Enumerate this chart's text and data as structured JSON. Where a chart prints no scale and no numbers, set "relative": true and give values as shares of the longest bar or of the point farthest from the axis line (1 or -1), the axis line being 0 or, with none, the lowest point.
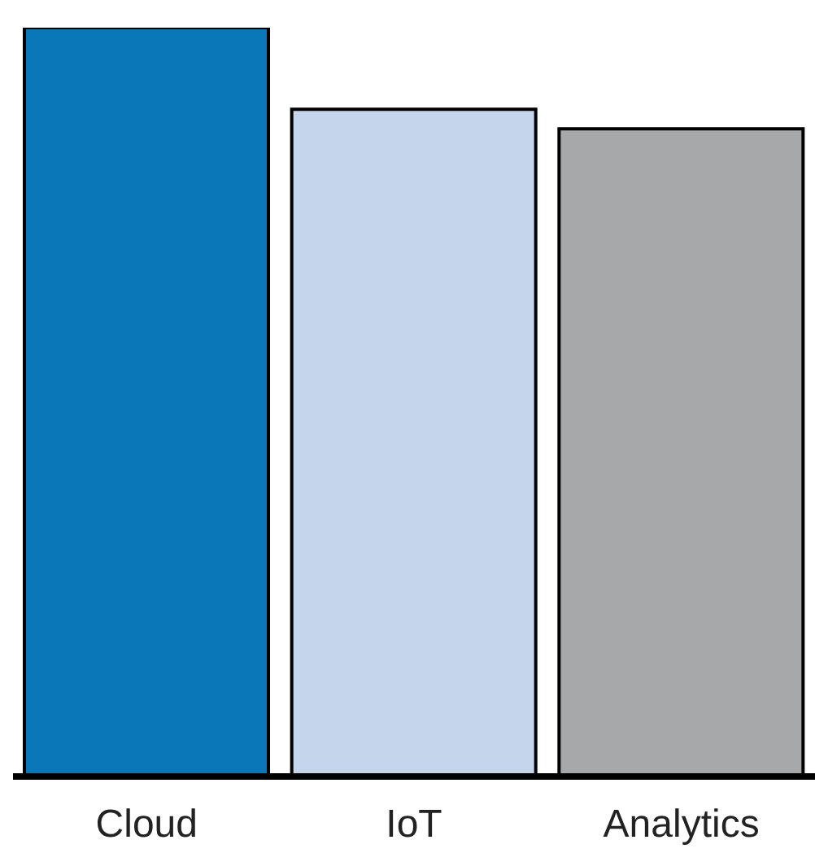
{
  "chart_data": {
    "type": "bar",
    "relative": true,
    "categories": [
      "Cloud",
      "IoT",
      "Analytics"
    ],
    "values": [
      1,
      0.891,
      0.865
    ],
    "colors": [
      "#0a77b8",
      "#c5d5ec",
      "#a7a8aa"
    ]
  }
}
